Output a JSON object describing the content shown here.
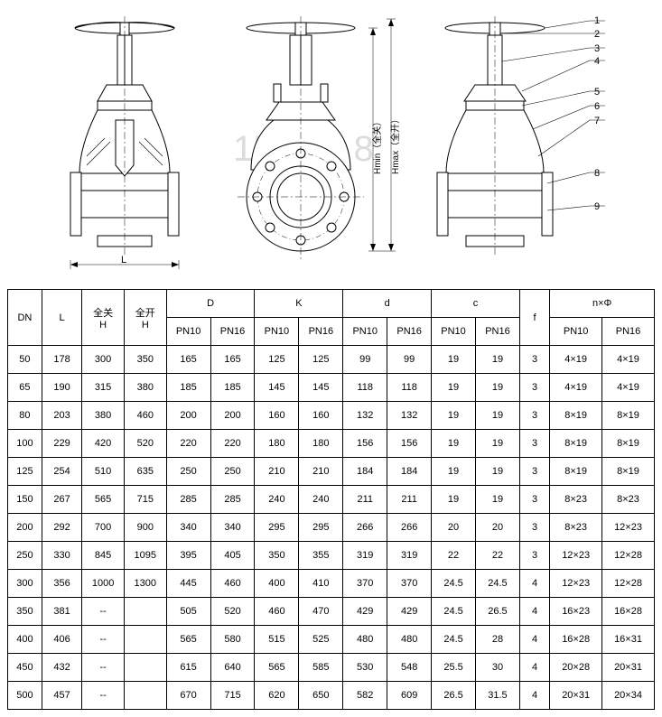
{
  "diagram": {
    "callouts": [
      "1",
      "2",
      "3",
      "4",
      "5",
      "6",
      "7",
      "8",
      "9"
    ],
    "dim_labels": [
      "L",
      "Hmin（全关）",
      "Hmax（全开）"
    ],
    "watermark": "1500     1   8",
    "stroke": "#000000",
    "fill": "#ffffff"
  },
  "table": {
    "headers": {
      "dn": "DN",
      "l": "L",
      "h_closed": "全关\nH",
      "h_open": "全开\nH",
      "d": "D",
      "k": "K",
      "d2": "d",
      "c": "c",
      "f": "f",
      "nphi": "n×Φ",
      "pn10": "PN10",
      "pn16": "PN16"
    },
    "rows": [
      {
        "dn": "50",
        "l": "178",
        "hc": "300",
        "ho": "350",
        "d10": "165",
        "d16": "165",
        "k10": "125",
        "k16": "125",
        "dd10": "99",
        "dd16": "99",
        "c10": "19",
        "c16": "19",
        "f": "3",
        "n10": "4×19",
        "n16": "4×19"
      },
      {
        "dn": "65",
        "l": "190",
        "hc": "315",
        "ho": "380",
        "d10": "185",
        "d16": "185",
        "k10": "145",
        "k16": "145",
        "dd10": "118",
        "dd16": "118",
        "c10": "19",
        "c16": "19",
        "f": "3",
        "n10": "4×19",
        "n16": "4×19"
      },
      {
        "dn": "80",
        "l": "203",
        "hc": "380",
        "ho": "460",
        "d10": "200",
        "d16": "200",
        "k10": "160",
        "k16": "160",
        "dd10": "132",
        "dd16": "132",
        "c10": "19",
        "c16": "19",
        "f": "3",
        "n10": "8×19",
        "n16": "8×19"
      },
      {
        "dn": "100",
        "l": "229",
        "hc": "420",
        "ho": "520",
        "d10": "220",
        "d16": "220",
        "k10": "180",
        "k16": "180",
        "dd10": "156",
        "dd16": "156",
        "c10": "19",
        "c16": "19",
        "f": "3",
        "n10": "8×19",
        "n16": "8×19"
      },
      {
        "dn": "125",
        "l": "254",
        "hc": "510",
        "ho": "635",
        "d10": "250",
        "d16": "250",
        "k10": "210",
        "k16": "210",
        "dd10": "184",
        "dd16": "184",
        "c10": "19",
        "c16": "19",
        "f": "3",
        "n10": "8×19",
        "n16": "8×19"
      },
      {
        "dn": "150",
        "l": "267",
        "hc": "565",
        "ho": "715",
        "d10": "285",
        "d16": "285",
        "k10": "240",
        "k16": "240",
        "dd10": "211",
        "dd16": "211",
        "c10": "19",
        "c16": "19",
        "f": "3",
        "n10": "8×23",
        "n16": "8×23"
      },
      {
        "dn": "200",
        "l": "292",
        "hc": "700",
        "ho": "900",
        "d10": "340",
        "d16": "340",
        "k10": "295",
        "k16": "295",
        "dd10": "266",
        "dd16": "266",
        "c10": "20",
        "c16": "20",
        "f": "3",
        "n10": "8×23",
        "n16": "12×23"
      },
      {
        "dn": "250",
        "l": "330",
        "hc": "845",
        "ho": "1095",
        "d10": "395",
        "d16": "405",
        "k10": "350",
        "k16": "355",
        "dd10": "319",
        "dd16": "319",
        "c10": "22",
        "c16": "22",
        "f": "3",
        "n10": "12×23",
        "n16": "12×28"
      },
      {
        "dn": "300",
        "l": "356",
        "hc": "1000",
        "ho": "1300",
        "d10": "445",
        "d16": "460",
        "k10": "400",
        "k16": "410",
        "dd10": "370",
        "dd16": "370",
        "c10": "24.5",
        "c16": "24.5",
        "f": "4",
        "n10": "12×23",
        "n16": "12×28"
      },
      {
        "dn": "350",
        "l": "381",
        "hc": "--",
        "ho": "",
        "d10": "505",
        "d16": "520",
        "k10": "460",
        "k16": "470",
        "dd10": "429",
        "dd16": "429",
        "c10": "24.5",
        "c16": "26.5",
        "f": "4",
        "n10": "16×23",
        "n16": "16×28"
      },
      {
        "dn": "400",
        "l": "406",
        "hc": "--",
        "ho": "",
        "d10": "565",
        "d16": "580",
        "k10": "515",
        "k16": "525",
        "dd10": "480",
        "dd16": "480",
        "c10": "24.5",
        "c16": "28",
        "f": "4",
        "n10": "16×28",
        "n16": "16×31"
      },
      {
        "dn": "450",
        "l": "432",
        "hc": "--",
        "ho": "",
        "d10": "615",
        "d16": "640",
        "k10": "565",
        "k16": "585",
        "dd10": "530",
        "dd16": "548",
        "c10": "25.5",
        "c16": "30",
        "f": "4",
        "n10": "20×28",
        "n16": "20×31"
      },
      {
        "dn": "500",
        "l": "457",
        "hc": "--",
        "ho": "",
        "d10": "670",
        "d16": "715",
        "k10": "620",
        "k16": "650",
        "dd10": "582",
        "dd16": "609",
        "c10": "26.5",
        "c16": "31.5",
        "f": "4",
        "n10": "20×31",
        "n16": "20×34"
      }
    ]
  }
}
